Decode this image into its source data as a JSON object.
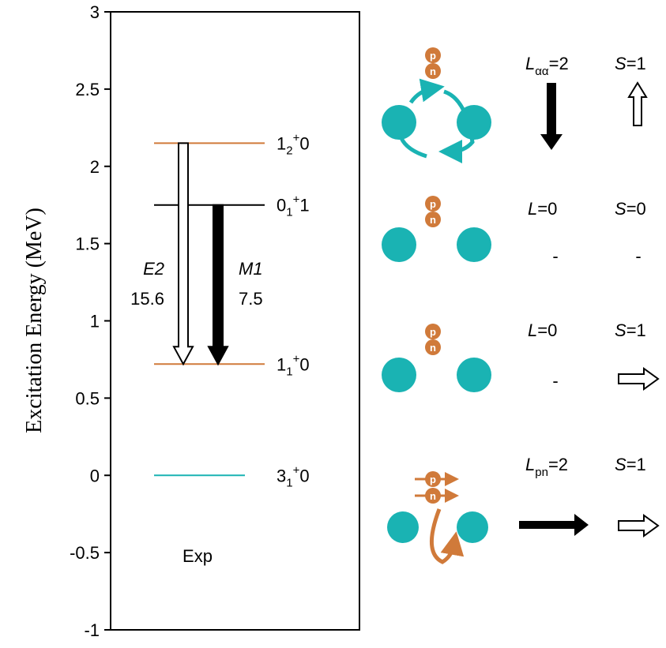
{
  "chart_data": {
    "type": "level-scheme",
    "ylabel": "Excitation Energy (MeV)",
    "xlabel": "Exp",
    "ylim": [
      -1,
      3
    ],
    "yticks": [
      -1,
      -0.5,
      0,
      0.5,
      1,
      1.5,
      2,
      2.5,
      3
    ],
    "levels": [
      {
        "energy": 2.15,
        "J": "1",
        "index": "2",
        "parity": "+",
        "T": "0",
        "color": "#d07a3a"
      },
      {
        "energy": 1.75,
        "J": "0",
        "index": "1",
        "parity": "+",
        "T": "1",
        "color": "#000000"
      },
      {
        "energy": 0.72,
        "J": "1",
        "index": "1",
        "parity": "+",
        "T": "0",
        "color": "#d07a3a"
      },
      {
        "energy": 0,
        "J": "3",
        "index": "1",
        "parity": "+",
        "T": "0",
        "color": "#1ab3b3"
      }
    ],
    "transitions": [
      {
        "type": "E2",
        "from": 2.15,
        "to": 0.72,
        "value": 15.6,
        "fill": "#ffffff"
      },
      {
        "type": "M1",
        "from": 1.75,
        "to": 0.72,
        "value": 7.5,
        "fill": "#000000"
      }
    ]
  },
  "schematic": {
    "proton": "p",
    "neutron": "n",
    "rows": [
      {
        "L": "L",
        "L_sub": "αα",
        "L_eq": "=2",
        "S": "S",
        "S_eq": "=1"
      },
      {
        "L": "L",
        "L_eq": "=0",
        "S": "S",
        "S_eq": "=0",
        "L_none": "-",
        "S_none": "-"
      },
      {
        "L": "L",
        "L_eq": "=0",
        "S": "S",
        "S_eq": "=1",
        "L_none": "-"
      },
      {
        "L": "L",
        "L_sub": "pn",
        "L_eq": "=2",
        "S": "S",
        "S_eq": "=1"
      }
    ]
  }
}
